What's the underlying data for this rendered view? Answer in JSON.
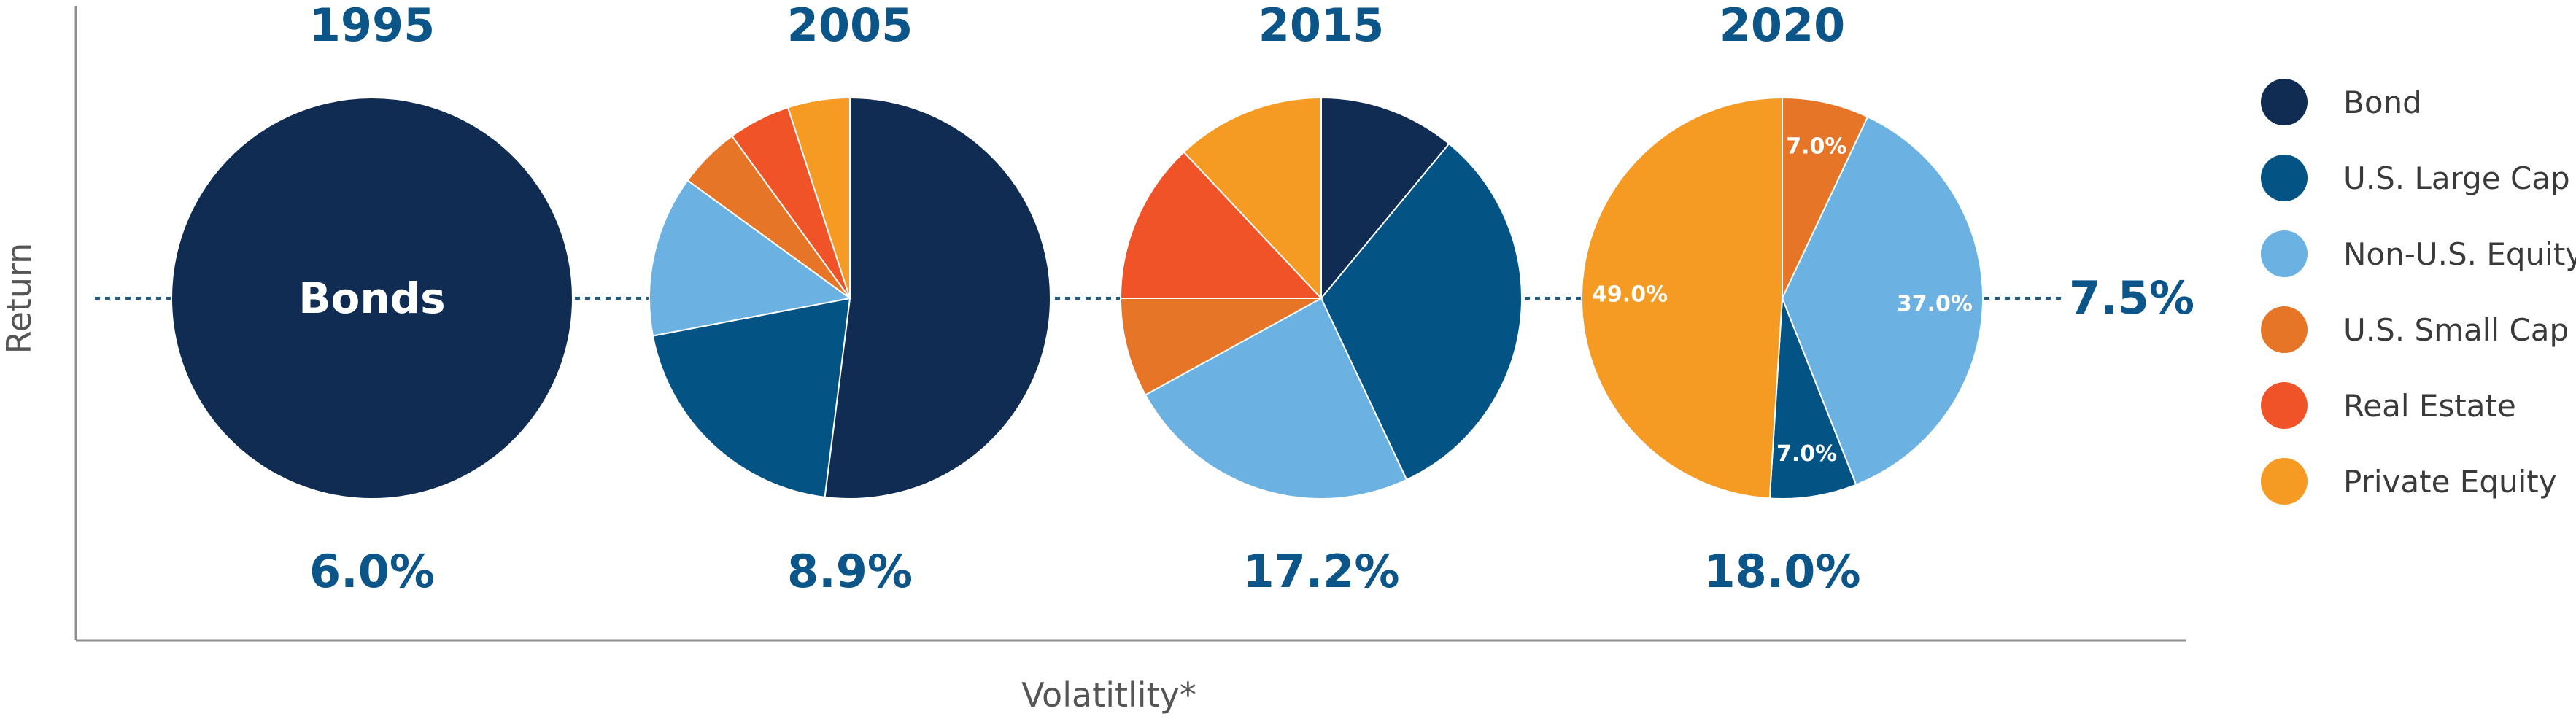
{
  "chart_data": {
    "type": "pie",
    "xlabel": "Volatitlity*",
    "ylabel": "Return",
    "target_return_label": "7.5%",
    "series_legend": [
      {
        "name": "Bond",
        "color": "#102c52"
      },
      {
        "name": "U.S. Large Cap",
        "color": "#035385"
      },
      {
        "name": "Non-U.S. Equity",
        "color": "#6bb1e1"
      },
      {
        "name": "U.S. Small Cap",
        "color": "#e67528"
      },
      {
        "name": "Real Estate",
        "color": "#ef5327"
      },
      {
        "name": "Private Equity",
        "color": "#f59a22"
      }
    ],
    "portfolios": [
      {
        "year": "1995",
        "volatility_label": "6.0%",
        "center_label": "Bonds",
        "slices": [
          {
            "asset": "Bond",
            "value": 100
          }
        ]
      },
      {
        "year": "2005",
        "volatility_label": "8.9%",
        "slices": [
          {
            "asset": "Bond",
            "value": 52
          },
          {
            "asset": "U.S. Large Cap",
            "value": 20
          },
          {
            "asset": "Non-U.S. Equity",
            "value": 13
          },
          {
            "asset": "U.S. Small Cap",
            "value": 5
          },
          {
            "asset": "Real Estate",
            "value": 5
          },
          {
            "asset": "Private Equity",
            "value": 5
          }
        ]
      },
      {
        "year": "2015",
        "volatility_label": "17.2%",
        "slices": [
          {
            "asset": "Bond",
            "value": 11
          },
          {
            "asset": "U.S. Large Cap",
            "value": 32
          },
          {
            "asset": "Non-U.S. Equity",
            "value": 24
          },
          {
            "asset": "U.S. Small Cap",
            "value": 8
          },
          {
            "asset": "Real Estate",
            "value": 13
          },
          {
            "asset": "Private Equity",
            "value": 12
          }
        ]
      },
      {
        "year": "2020",
        "volatility_label": "18.0%",
        "slices": [
          {
            "asset": "U.S. Small Cap",
            "value": 7,
            "label": "7.0%"
          },
          {
            "asset": "Non-U.S. Equity",
            "value": 37,
            "label": "37.0%"
          },
          {
            "asset": "U.S. Large Cap",
            "value": 7,
            "label": "7.0%"
          },
          {
            "asset": "Private Equity",
            "value": 49,
            "label": "49.0%"
          }
        ]
      }
    ]
  }
}
